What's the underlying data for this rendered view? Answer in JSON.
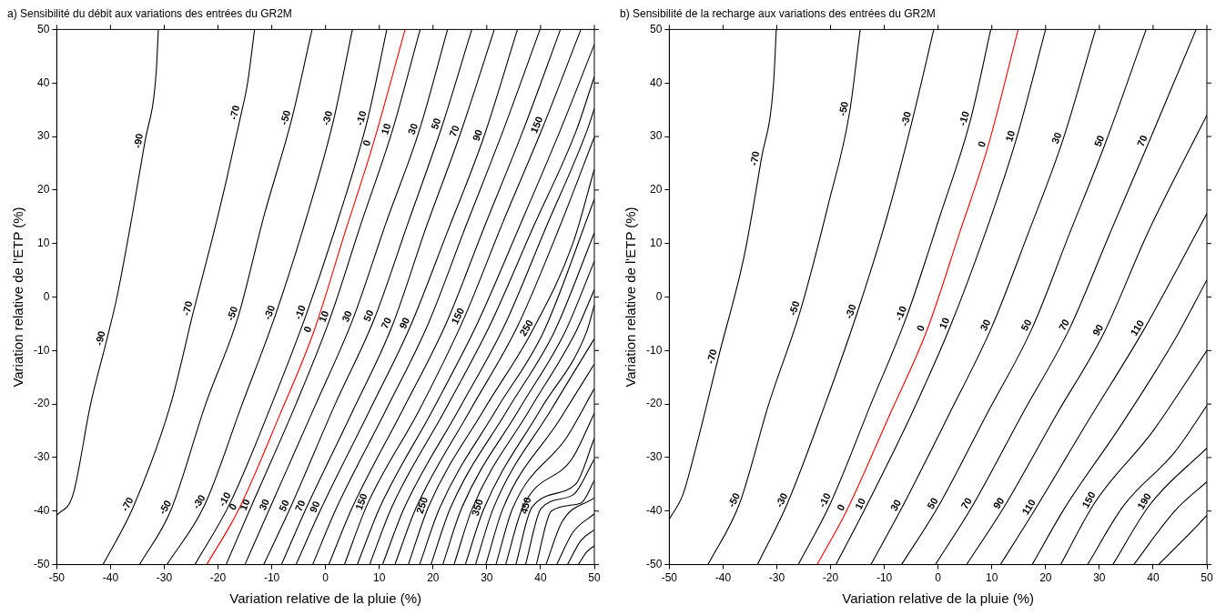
{
  "chart_data": [
    {
      "type": "line",
      "title": "a) Sensibilité du débit aux variations des entrées du GR2M",
      "xlabel": "Variation relative de la pluie (%)",
      "ylabel": "Variation relative de l'ETP (%)",
      "xlim": [
        -50,
        50
      ],
      "ylim": [
        -50,
        50
      ],
      "xticks": [
        -50,
        -40,
        -30,
        -20,
        -10,
        0,
        10,
        20,
        30,
        40,
        50
      ],
      "yticks": [
        -50,
        -40,
        -30,
        -20,
        -10,
        0,
        10,
        20,
        30,
        40,
        50
      ],
      "marker": "none",
      "series": [
        {
          "color": "#000000",
          "x": [
            -50,
            -47,
            -43.7,
            -40.7,
            -38.8,
            -36,
            -33.6,
            -31.5,
            -31.1
          ],
          "values": [
            -40.8,
            -37,
            -20,
            -8,
            0,
            15,
            29,
            42,
            50
          ]
        },
        {
          "color": "#000000",
          "x": [
            -41.4,
            -35.8,
            -28.8,
            -24.5,
            -21.3,
            -18.4,
            -15.7,
            -14.5,
            -13.2
          ],
          "values": [
            -50,
            -39.3,
            -20,
            -2.4,
            10,
            22,
            34.2,
            40,
            50
          ]
        },
        {
          "color": "#000000",
          "x": [
            -34.6,
            -28.8,
            -22.3,
            -16.2,
            -11.5,
            -6.3,
            -2.5
          ],
          "values": [
            -50,
            -39.9,
            -20,
            -3.5,
            15,
            33.2,
            50
          ]
        },
        {
          "color": "#000000",
          "x": [
            -29.5,
            -22.5,
            -15.5,
            -9.3,
            -3.5,
            1.5,
            5
          ],
          "values": [
            -50,
            -38.9,
            -20,
            -3.3,
            15,
            33.1,
            50
          ]
        },
        {
          "color": "#000000",
          "x": [
            -24.3,
            -17.7,
            -10,
            -3.6,
            2.5,
            7.8,
            11.4
          ],
          "values": [
            -50,
            -38.4,
            -20,
            -3.3,
            15,
            33.1,
            50
          ]
        },
        {
          "color": "#ff0000",
          "x": [
            -22.1,
            -16.2,
            -8.5,
            -2.2,
            3.6,
            8.8,
            14.8
          ],
          "values": [
            -50,
            -39.8,
            -22,
            -6.5,
            12,
            28.4,
            50
          ]
        },
        {
          "color": "#000000",
          "x": [
            -18.5,
            -13.9,
            -5.5,
            0.8,
            6.7,
            12.4,
            17.6
          ],
          "values": [
            -50,
            -39.3,
            -20,
            -4.1,
            14,
            31,
            50
          ]
        },
        {
          "color": "#000000",
          "x": [
            -15,
            -10.3,
            -1.8,
            5.1,
            11.3,
            17.4,
            22.7
          ],
          "values": [
            -50,
            -39.3,
            -20,
            -4.1,
            14,
            31,
            50
          ]
        },
        {
          "color": "#000000",
          "x": [
            -11.5,
            -6.6,
            1.8,
            9.1,
            15.4,
            21.7,
            27.2
          ],
          "values": [
            -50,
            -39.5,
            -20,
            -4,
            14,
            32,
            50
          ]
        },
        {
          "color": "#000000",
          "x": [
            -8.2,
            -3.6,
            5.2,
            12.4,
            18.7,
            25.1,
            31.4
          ],
          "values": [
            -50,
            -39.5,
            -21,
            -5.4,
            13,
            30.6,
            50
          ]
        },
        {
          "color": "#000000",
          "x": [
            -5.5,
            -0.9,
            8.3,
            15.8,
            22.6,
            29.4,
            35.7
          ],
          "values": [
            -50,
            -39.7,
            -21,
            -5.4,
            12,
            29.8,
            50
          ]
        },
        {
          "color": "#000000",
          "x": [
            -2.4,
            2,
            11.3,
            19.1,
            26,
            33,
            39.9
          ],
          "values": [
            -50,
            -39.5,
            -21,
            -5,
            13,
            31,
            50
          ]
        },
        {
          "color": "#000000",
          "x": [
            0.6,
            4.9,
            14.4,
            22.4,
            29.5,
            36.7,
            43.7
          ],
          "values": [
            -50,
            -39.5,
            -21,
            -5,
            13,
            31,
            50
          ]
        },
        {
          "color": "#000000",
          "x": [
            3.5,
            7.8,
            17.5,
            25.7,
            33,
            40.4,
            47.5
          ],
          "values": [
            -50,
            -38.7,
            -21,
            -4.1,
            14,
            31.7,
            50
          ]
        },
        {
          "color": "#000000",
          "x": [
            5.9,
            10.1,
            20,
            28.2,
            36,
            43.6,
            50
          ],
          "values": [
            -50,
            -39.3,
            -21,
            -5,
            13,
            31,
            47.2
          ]
        },
        {
          "color": "#000000",
          "x": [
            8.2,
            12.3,
            22.3,
            30.7,
            38.6,
            46.6,
            50
          ],
          "values": [
            -50,
            -39.3,
            -21,
            -5,
            13,
            31,
            41.2
          ]
        },
        {
          "color": "#000000",
          "x": [
            10.6,
            14.6,
            24.8,
            33.2,
            41,
            48.6,
            50
          ],
          "values": [
            -50,
            -39.5,
            -21,
            -5.5,
            13,
            31,
            35.2
          ]
        },
        {
          "color": "#000000",
          "x": [
            12.9,
            16.8,
            27,
            35.7,
            43.5,
            50
          ],
          "values": [
            -50,
            -39.5,
            -21,
            -5.5,
            13,
            29.9
          ]
        },
        {
          "color": "#000000",
          "x": [
            15.4,
            19.1,
            29.5,
            38.4,
            46,
            50
          ],
          "values": [
            -50,
            -39.3,
            -21,
            -6.4,
            10,
            23.9
          ]
        },
        {
          "color": "#000000",
          "x": [
            17.5,
            21.2,
            31.8,
            40.6,
            50
          ],
          "values": [
            -50,
            -39.5,
            -21,
            -6.4,
            18.3
          ]
        },
        {
          "color": "#000000",
          "x": [
            19.6,
            23.2,
            33.9,
            42.6,
            50
          ],
          "values": [
            -50,
            -39.5,
            -21,
            -6.4,
            12
          ]
        },
        {
          "color": "#000000",
          "x": [
            21.8,
            25.3,
            36,
            44.6,
            50
          ],
          "values": [
            -50,
            -39.5,
            -21,
            -6.4,
            6.7
          ]
        },
        {
          "color": "#000000",
          "x": [
            23.9,
            27.3,
            38,
            46.6,
            50
          ],
          "values": [
            -50,
            -39.5,
            -21,
            -6.4,
            1.4
          ]
        },
        {
          "color": "#000000",
          "x": [
            26,
            29.4,
            40,
            48.6,
            50
          ],
          "values": [
            -50,
            -39.7,
            -21,
            -6.4,
            -1.5
          ]
        },
        {
          "color": "#000000",
          "x": [
            27.9,
            31.2,
            42,
            50
          ],
          "values": [
            -50,
            -39.5,
            -21,
            -7.8
          ]
        },
        {
          "color": "#000000",
          "x": [
            29.8,
            33,
            43.5,
            50
          ],
          "values": [
            -50,
            -39.5,
            -23,
            -12.5
          ]
        },
        {
          "color": "#000000",
          "x": [
            31.7,
            34.8,
            45,
            50
          ],
          "values": [
            -50,
            -39.5,
            -26,
            -17.1
          ]
        },
        {
          "color": "#000000",
          "x": [
            33.5,
            36.6,
            46,
            50
          ],
          "values": [
            -50,
            -39.5,
            -30,
            -21.7
          ]
        },
        {
          "color": "#000000",
          "x": [
            35.4,
            38.4,
            46.5,
            50
          ],
          "values": [
            -50,
            -39.3,
            -35,
            -26.4
          ]
        },
        {
          "color": "#000000",
          "x": [
            37.2,
            40.1,
            46,
            50
          ],
          "values": [
            -50,
            -39.5,
            -37,
            -30.3
          ]
        },
        {
          "color": "#000000",
          "x": [
            39.2,
            42,
            47.5,
            50
          ],
          "values": [
            -50,
            -40,
            -38.5,
            -34.3
          ]
        },
        {
          "color": "#000000",
          "x": [
            41,
            44,
            50
          ],
          "values": [
            -50,
            -42,
            -37.5
          ]
        },
        {
          "color": "#000000",
          "x": [
            43,
            46,
            50
          ],
          "values": [
            -50,
            -44,
            -40.5
          ]
        },
        {
          "color": "#000000",
          "x": [
            45,
            47.5,
            50
          ],
          "values": [
            -50,
            -45.5,
            -43.5
          ]
        },
        {
          "color": "#000000",
          "x": [
            47,
            48.7,
            50
          ],
          "values": [
            -50,
            -47.5,
            -46.5
          ]
        }
      ],
      "annotations": [
        {
          "text": "-90",
          "x": -33.6,
          "y": 29
        },
        {
          "text": "-90",
          "x": -40.7,
          "y": -8
        },
        {
          "text": "-70",
          "x": -15.7,
          "y": 34.2
        },
        {
          "text": "-70",
          "x": -24.5,
          "y": -2.4
        },
        {
          "text": "-70",
          "x": -35.8,
          "y": -39.3
        },
        {
          "text": "-50",
          "x": -6.3,
          "y": 33.2
        },
        {
          "text": "-50",
          "x": -16.2,
          "y": -3.5
        },
        {
          "text": "-50",
          "x": -28.8,
          "y": -39.9
        },
        {
          "text": "-30",
          "x": 1.5,
          "y": 33.1
        },
        {
          "text": "-30",
          "x": -9.3,
          "y": -3.3
        },
        {
          "text": "-30",
          "x": -22.5,
          "y": -38.9
        },
        {
          "text": "-10",
          "x": 7.8,
          "y": 33.1
        },
        {
          "text": "-10",
          "x": -3.6,
          "y": -3.3
        },
        {
          "text": "-10",
          "x": -17.7,
          "y": -38.4
        },
        {
          "text": "0",
          "x": 8.8,
          "y": 28.4
        },
        {
          "text": "0",
          "x": -2.2,
          "y": -6.5
        },
        {
          "text": "0",
          "x": -16.2,
          "y": -39.8
        },
        {
          "text": "10",
          "x": 12.4,
          "y": 31
        },
        {
          "text": "10",
          "x": 0.8,
          "y": -4.1
        },
        {
          "text": "10",
          "x": -13.9,
          "y": -39.3
        },
        {
          "text": "30",
          "x": 17.4,
          "y": 31
        },
        {
          "text": "30",
          "x": 5.1,
          "y": -4.1
        },
        {
          "text": "30",
          "x": -10.3,
          "y": -39.3
        },
        {
          "text": "50",
          "x": 21.7,
          "y": 32
        },
        {
          "text": "50",
          "x": 9.1,
          "y": -4
        },
        {
          "text": "50",
          "x": -6.6,
          "y": -39.5
        },
        {
          "text": "70",
          "x": 25.1,
          "y": 30.6
        },
        {
          "text": "70",
          "x": 12.4,
          "y": -5.4
        },
        {
          "text": "70",
          "x": -3.6,
          "y": -39.5
        },
        {
          "text": "90",
          "x": 29.4,
          "y": 29.8
        },
        {
          "text": "90",
          "x": 15.8,
          "y": -5.4
        },
        {
          "text": "90",
          "x": -0.9,
          "y": -39.7
        },
        {
          "text": "150",
          "x": 40.4,
          "y": 31.7
        },
        {
          "text": "150",
          "x": 25.7,
          "y": -4.1
        },
        {
          "text": "150",
          "x": 7.8,
          "y": -38.7
        },
        {
          "text": "250",
          "x": 38.4,
          "y": -6.4
        },
        {
          "text": "250",
          "x": 19.1,
          "y": -39.3
        },
        {
          "text": "350",
          "x": 29.4,
          "y": -39.7
        },
        {
          "text": "450",
          "x": 38.4,
          "y": -39.3
        }
      ]
    },
    {
      "type": "line",
      "title": "b) Sensibilité de la recharge aux variations des entrées du GR2M",
      "xlabel": "Variation relative de la pluie (%)",
      "ylabel": "Variation relative de l'ETP (%)",
      "xlim": [
        -50,
        50
      ],
      "ylim": [
        -50,
        50
      ],
      "xticks": [
        -50,
        -40,
        -30,
        -20,
        -10,
        0,
        10,
        20,
        30,
        40,
        50
      ],
      "yticks": [
        -50,
        -40,
        -30,
        -20,
        -10,
        0,
        10,
        20,
        30,
        40,
        50
      ],
      "marker": "none",
      "series": [
        {
          "color": "#000000",
          "x": [
            -50,
            -47.5,
            -45,
            -40.9,
            -36,
            -32.9,
            -30.6,
            -30.1
          ],
          "values": [
            -41.5,
            -37,
            -28,
            -11.4,
            8,
            25.7,
            40,
            50
          ]
        },
        {
          "color": "#000000",
          "x": [
            -42.8,
            -36.9,
            -31.5,
            -25.6,
            -20.5,
            -16.4,
            -14.5
          ],
          "values": [
            -50,
            -38.5,
            -20,
            -2.5,
            17,
            34.9,
            50
          ]
        },
        {
          "color": "#000000",
          "x": [
            -33.6,
            -28,
            -21,
            -15.1,
            -9.5,
            -4.8,
            -0.8
          ],
          "values": [
            -50,
            -38.5,
            -20,
            -3.1,
            15,
            33,
            50
          ]
        },
        {
          "color": "#000000",
          "x": [
            -26,
            -20,
            -12.5,
            -5.8,
            0.3,
            6,
            9.8
          ],
          "values": [
            -50,
            -38.5,
            -20,
            -3.5,
            15,
            33,
            50
          ]
        },
        {
          "color": "#ff0000",
          "x": [
            -22.5,
            -17,
            -9,
            -2.1,
            4,
            9.3,
            14.9
          ],
          "values": [
            -50,
            -39.9,
            -22,
            -6.3,
            12,
            28.2,
            50
          ]
        },
        {
          "color": "#000000",
          "x": [
            -19,
            -13.4,
            -5,
            2.3,
            8.8,
            14.6,
            20
          ],
          "values": [
            -50,
            -39.2,
            -22,
            -5.4,
            12,
            29.7,
            50
          ]
        },
        {
          "color": "#000000",
          "x": [
            -12.5,
            -6.8,
            2,
            9.9,
            16.8,
            23.2,
            29.3
          ],
          "values": [
            -50,
            -39.5,
            -22,
            -5.8,
            12,
            29.3,
            50
          ]
        },
        {
          "color": "#000000",
          "x": [
            -6.8,
            0,
            9,
            17.5,
            24.5,
            31.1,
            38.7
          ],
          "values": [
            -50,
            -39.2,
            -22,
            -5.8,
            12,
            28.7,
            50
          ]
        },
        {
          "color": "#000000",
          "x": [
            -0.5,
            6.3,
            15.6,
            24.5,
            32,
            39.1,
            48
          ],
          "values": [
            -50,
            -39.2,
            -22,
            -5.8,
            12,
            28.7,
            50
          ]
        },
        {
          "color": "#000000",
          "x": [
            5.3,
            12.3,
            22,
            30.8,
            39,
            50
          ],
          "values": [
            -50,
            -39.2,
            -22,
            -6.8,
            12,
            34
          ]
        },
        {
          "color": "#000000",
          "x": [
            11.6,
            17.9,
            28,
            38.1,
            50
          ],
          "values": [
            -50,
            -39.9,
            -23,
            -6.4,
            15.6
          ]
        },
        {
          "color": "#000000",
          "x": [
            17.5,
            23.5,
            34,
            44,
            50
          ],
          "values": [
            -50,
            -39.5,
            -24,
            -8,
            3.2
          ]
        },
        {
          "color": "#000000",
          "x": [
            22.8,
            29.1,
            40,
            50
          ],
          "values": [
            -50,
            -38.5,
            -25,
            -10
          ]
        },
        {
          "color": "#000000",
          "x": [
            27.8,
            34.5,
            44,
            50
          ],
          "values": [
            -50,
            -39,
            -29,
            -20.3
          ]
        },
        {
          "color": "#000000",
          "x": [
            32.5,
            39.4,
            50
          ],
          "values": [
            -50,
            -38.8,
            -28.2
          ]
        },
        {
          "color": "#000000",
          "x": [
            36.4,
            44,
            50
          ],
          "values": [
            -50,
            -40,
            -34.5
          ]
        },
        {
          "color": "#000000",
          "x": [
            41,
            46,
            50
          ],
          "values": [
            -50,
            -45,
            -40.8
          ]
        }
      ],
      "annotations": [
        {
          "text": "-70",
          "x": -32.9,
          "y": 25.7
        },
        {
          "text": "-70",
          "x": -40.9,
          "y": -11.4
        },
        {
          "text": "-50",
          "x": -16.4,
          "y": 34.9
        },
        {
          "text": "-50",
          "x": -25.6,
          "y": -2.5
        },
        {
          "text": "-50",
          "x": -36.9,
          "y": -38.5
        },
        {
          "text": "-30",
          "x": -4.8,
          "y": 33
        },
        {
          "text": "-30",
          "x": -15.1,
          "y": -3.1
        },
        {
          "text": "-30",
          "x": -28,
          "y": -38.5
        },
        {
          "text": "-10",
          "x": 6,
          "y": 33
        },
        {
          "text": "-10",
          "x": -5.8,
          "y": -3.5
        },
        {
          "text": "-10",
          "x": -20,
          "y": -38.5
        },
        {
          "text": "0",
          "x": 9.3,
          "y": 28.2
        },
        {
          "text": "0",
          "x": -2.1,
          "y": -6.3
        },
        {
          "text": "0",
          "x": -17,
          "y": -39.9
        },
        {
          "text": "10",
          "x": 14.6,
          "y": 29.7
        },
        {
          "text": "10",
          "x": 2.3,
          "y": -5.4
        },
        {
          "text": "10",
          "x": -13.4,
          "y": -39.2
        },
        {
          "text": "30",
          "x": 23.2,
          "y": 29.3
        },
        {
          "text": "30",
          "x": 9.9,
          "y": -5.8
        },
        {
          "text": "30",
          "x": -6.8,
          "y": -39.5
        },
        {
          "text": "50",
          "x": 31.1,
          "y": 28.7
        },
        {
          "text": "50",
          "x": 17.5,
          "y": -5.8
        },
        {
          "text": "50",
          "x": 0,
          "y": -39.2
        },
        {
          "text": "70",
          "x": 39.1,
          "y": 28.7
        },
        {
          "text": "70",
          "x": 24.5,
          "y": -5.8
        },
        {
          "text": "70",
          "x": 6.3,
          "y": -39.2
        },
        {
          "text": "90",
          "x": 30.8,
          "y": -6.8
        },
        {
          "text": "90",
          "x": 12.3,
          "y": -39.2
        },
        {
          "text": "110",
          "x": 38.1,
          "y": -6.4
        },
        {
          "text": "110",
          "x": 17.9,
          "y": -39.9
        },
        {
          "text": "150",
          "x": 29.1,
          "y": -38.5
        },
        {
          "text": "190",
          "x": 39.4,
          "y": -38.8
        }
      ]
    }
  ]
}
